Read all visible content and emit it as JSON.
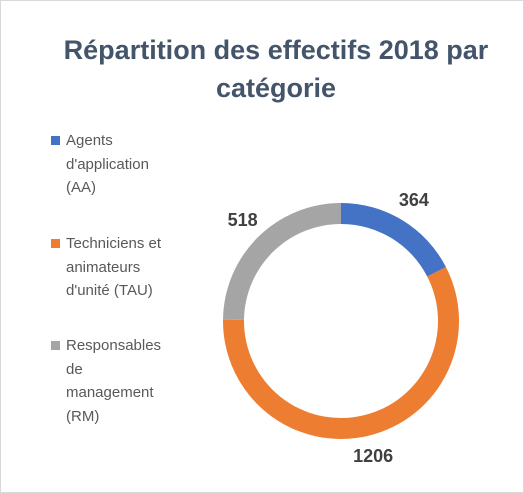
{
  "chart_data": {
    "type": "donut",
    "title": "Répartition des effectifs 2018 par catégorie",
    "categories": [
      "Agents d'application (AA)",
      "Techniciens et animateurs d'unité (TAU)",
      "Responsables de management (RM)"
    ],
    "values": [
      364,
      1206,
      518
    ],
    "colors": [
      "#4472c4",
      "#ed7d31",
      "#a5a5a5"
    ],
    "legend": "left"
  }
}
